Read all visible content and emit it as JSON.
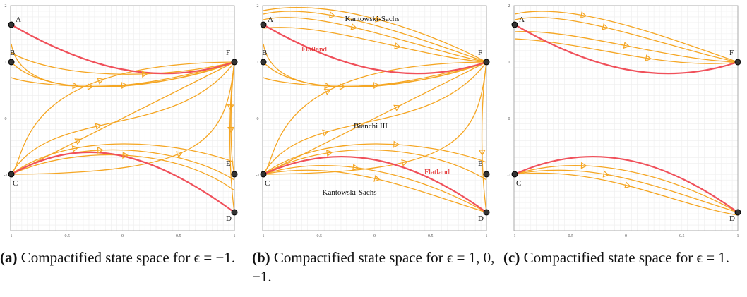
{
  "panels": [
    {
      "points": [
        "A",
        "B",
        "C",
        "D",
        "E",
        "F"
      ],
      "regions": [],
      "axes": {
        "x": [
          "-1",
          "-0.5",
          "0",
          "0.5",
          "1"
        ],
        "y": [
          "2",
          "1",
          "0",
          "-1"
        ]
      },
      "caption": {
        "label": "(a)",
        "text": "Compactified state space for ϵ = −1."
      }
    },
    {
      "points": [
        "A",
        "B",
        "C",
        "D",
        "E",
        "F"
      ],
      "regions": [
        "Kantowski-Sachs",
        "Flatland",
        "Bianchi III",
        "Flatland",
        "Kantowski-Sachs"
      ],
      "axes": {
        "x": [
          "-1",
          "-0.5",
          "0",
          "0.5",
          "1"
        ],
        "y": [
          "2",
          "1",
          "0",
          "-1"
        ]
      },
      "caption": {
        "label": "(b)",
        "text": "Compactified state space for ϵ = 1, 0, −1."
      }
    },
    {
      "points": [
        "A",
        "C",
        "D",
        "F"
      ],
      "regions": [],
      "axes": {
        "x": [
          "-1",
          "-0.5",
          "0",
          "0.5",
          "1"
        ],
        "y": [
          "2",
          "1",
          "0",
          "-1"
        ]
      },
      "caption": {
        "label": "(c)",
        "text": "Compactified state space for ϵ = 1."
      }
    }
  ]
}
